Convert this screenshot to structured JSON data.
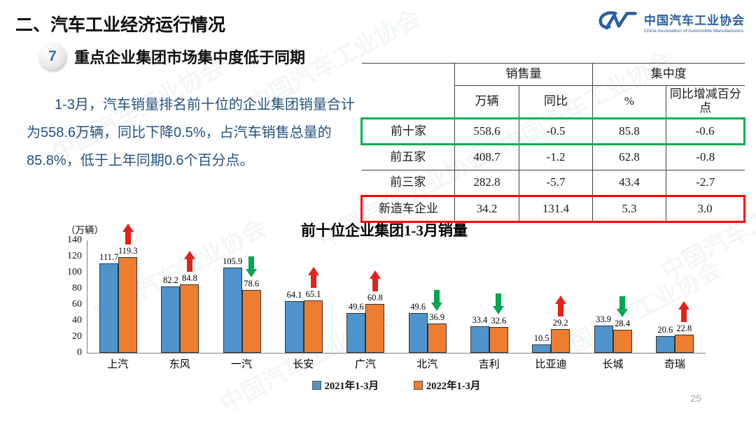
{
  "slide": {
    "section_title": "二、汽车工业经济运行情况",
    "badge_number": "7",
    "heading": "重点企业集团市场集中度低于同期",
    "paragraph": "1-3月，汽车销量排名前十位的企业集团销量合计为558.6万辆，同比下降0.5%，占汽车销售总量的85.8%，低于上年同期0.6个百分点。",
    "page_number": "25",
    "watermark_text": "中国汽车工业协会"
  },
  "logo": {
    "name_cn": "中国汽车工业协会",
    "name_en": "China Association of Automobile Manufacturers",
    "color": "#2d5f9e"
  },
  "table": {
    "col_groups": [
      "销售量",
      "集中度"
    ],
    "sub_headers": [
      "万辆",
      "同比",
      "%",
      "同比增减百分点"
    ],
    "rows": [
      {
        "label": "前十家",
        "values": [
          "558.6",
          "-0.5",
          "85.8",
          "-0.6"
        ],
        "highlight": "green"
      },
      {
        "label": "前五家",
        "values": [
          "408.7",
          "-1.2",
          "62.8",
          "-0.8"
        ],
        "highlight": null
      },
      {
        "label": "前三家",
        "values": [
          "282.8",
          "-5.7",
          "43.4",
          "-2.7"
        ],
        "highlight": null
      },
      {
        "label": "新造车企业",
        "values": [
          "34.2",
          "131.4",
          "5.3",
          "3.0"
        ],
        "highlight": "red"
      }
    ],
    "highlight_colors": {
      "green": "#00b050",
      "red": "#fe0000"
    }
  },
  "chart_data": {
    "type": "bar",
    "title": "前十位企业集团1-3月销量",
    "unit_label": "（万辆）",
    "categories": [
      "上汽",
      "东风",
      "一汽",
      "长安",
      "广汽",
      "北汽",
      "吉利",
      "比亚迪",
      "长城",
      "奇瑞"
    ],
    "series": [
      {
        "name": "2021年1-3月",
        "color": "#4f93cd",
        "values": [
          111.7,
          82.2,
          105.9,
          64.1,
          49.6,
          49.6,
          33.4,
          10.5,
          33.9,
          20.6
        ]
      },
      {
        "name": "2022年1-3月",
        "color": "#ed7d31",
        "values": [
          119.3,
          84.8,
          78.6,
          65.1,
          60.8,
          36.9,
          32.6,
          29.2,
          28.4,
          22.8
        ]
      }
    ],
    "trend": [
      "up",
      "up",
      "down",
      "up",
      "up",
      "down",
      "down",
      "up",
      "down",
      "up"
    ],
    "trend_colors": {
      "up": "#e2231a",
      "down": "#00a651"
    },
    "ylim": [
      0,
      140
    ],
    "yticks": [
      0,
      20,
      40,
      60,
      80,
      100,
      120,
      140
    ],
    "xlabel": "",
    "ylabel": "",
    "grid": false,
    "legend_position": "bottom"
  }
}
